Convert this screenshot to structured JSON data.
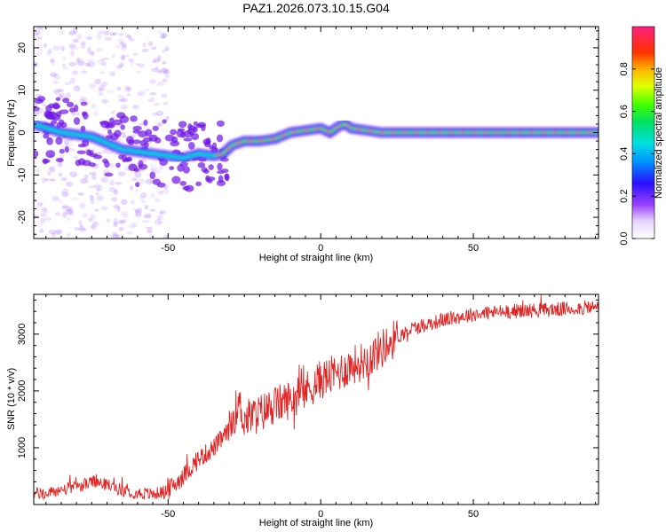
{
  "title": "PAZ1.2026.073.10.15.G04",
  "chart_data": [
    {
      "type": "heatmap",
      "title": "PAZ1.2026.073.10.15.G04",
      "xlabel": "Height of straight line (km)",
      "ylabel": "Frequency (Hz)",
      "xlim": [
        -94,
        91
      ],
      "ylim": [
        -25,
        25
      ],
      "xticks": [
        -50,
        0,
        50
      ],
      "yticks": [
        -20,
        -10,
        0,
        10,
        20
      ],
      "colorbar": {
        "label": "Normalized spectral amplitude",
        "range": [
          0,
          1
        ],
        "ticks": [
          0.0,
          0.2,
          0.4,
          0.6,
          0.8
        ]
      },
      "ridge": {
        "x": [
          -94,
          -85,
          -75,
          -65,
          -55,
          -45,
          -40,
          -35,
          -32,
          -29,
          -25,
          -20,
          -15,
          -10,
          -5,
          0,
          3,
          6,
          8,
          10,
          15,
          20,
          30,
          50,
          70,
          91
        ],
        "frequency": [
          2,
          0,
          -1,
          -4,
          -5,
          -6,
          -5,
          -5.5,
          -5,
          -3,
          -2,
          -2,
          -1.5,
          0,
          0.5,
          1,
          0,
          1.5,
          2,
          1,
          0.5,
          0,
          0,
          0,
          0,
          0
        ]
      },
      "noise_extent_x": [
        -94,
        -50
      ]
    },
    {
      "type": "line",
      "title": "",
      "xlabel": "Height of straight line (km)",
      "ylabel": "SNR (10 * v/v)",
      "xlim": [
        -94,
        91
      ],
      "ylim": [
        0,
        3700
      ],
      "xticks": [
        -50,
        0,
        50
      ],
      "yticks": [
        1000,
        2000,
        3000
      ],
      "series": [
        {
          "name": "SNR",
          "color": "#e02424",
          "x": [
            -94,
            -90,
            -85,
            -80,
            -75,
            -70,
            -65,
            -60,
            -55,
            -50,
            -45,
            -40,
            -35,
            -30,
            -27,
            -25,
            -20,
            -15,
            -10,
            -5,
            0,
            5,
            10,
            15,
            20,
            25,
            30,
            40,
            50,
            60,
            70,
            80,
            91
          ],
          "values": [
            200,
            180,
            260,
            300,
            400,
            350,
            250,
            200,
            180,
            250,
            500,
            800,
            1000,
            1300,
            1800,
            1500,
            1600,
            1750,
            1850,
            2000,
            2200,
            2300,
            2450,
            2550,
            2750,
            2950,
            3100,
            3250,
            3350,
            3400,
            3420,
            3440,
            3480
          ]
        }
      ]
    }
  ]
}
